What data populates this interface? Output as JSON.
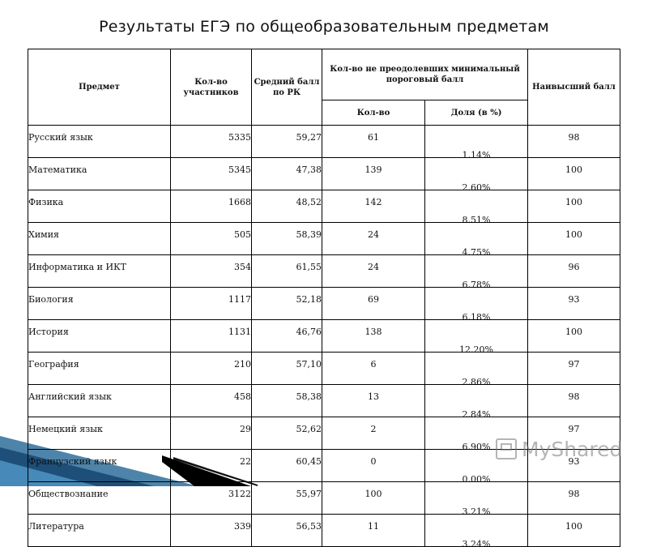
{
  "title": "Результаты ЕГЭ по общеобразовательным предметам",
  "table": {
    "headers": {
      "subject": "Предмет",
      "participants": "Кол-во участников",
      "avg_score": "Средний балл по РК",
      "not_passed": "Кол-во не преодолевших минимальный пороговый балл",
      "not_passed_count": "Кол-во",
      "not_passed_share": "Доля (в %)",
      "max_score": "Наивысший балл"
    },
    "rows": [
      {
        "subject": "Русский язык",
        "participants": "5335",
        "avg": "59,27",
        "count": "61",
        "share": "1,14%",
        "max": "98"
      },
      {
        "subject": "Математика",
        "participants": "5345",
        "avg": "47,38",
        "count": "139",
        "share": "2,60%",
        "max": "100"
      },
      {
        "subject": "Физика",
        "participants": "1668",
        "avg": "48,52",
        "count": "142",
        "share": "8,51%",
        "max": "100"
      },
      {
        "subject": "Химия",
        "participants": "505",
        "avg": "58,39",
        "count": "24",
        "share": "4,75%",
        "max": "100"
      },
      {
        "subject": "Информатика и ИКТ",
        "participants": "354",
        "avg": "61,55",
        "count": "24",
        "share": "6,78%",
        "max": "96"
      },
      {
        "subject": "Биология",
        "participants": "1117",
        "avg": "52,18",
        "count": "69",
        "share": "6,18%",
        "max": "93"
      },
      {
        "subject": "История",
        "participants": "1131",
        "avg": "46,76",
        "count": "138",
        "share": "12,20%",
        "max": "100"
      },
      {
        "subject": "География",
        "participants": "210",
        "avg": "57,10",
        "count": "6",
        "share": "2,86%",
        "max": "97"
      },
      {
        "subject": "Английский язык",
        "participants": "458",
        "avg": "58,38",
        "count": "13",
        "share": "2,84%",
        "max": "98"
      },
      {
        "subject": "Немецкий язык",
        "participants": "29",
        "avg": "52,62",
        "count": "2",
        "share": "6,90%",
        "max": "97"
      },
      {
        "subject": "Французский язык",
        "participants": "22",
        "avg": "60,45",
        "count": "0",
        "share": "0,00%",
        "max": "93"
      },
      {
        "subject": "Обществознание",
        "participants": "3122",
        "avg": "55,97",
        "count": "100",
        "share": "3,21%",
        "max": "98"
      },
      {
        "subject": "Литература",
        "participants": "339",
        "avg": "56,53",
        "count": "11",
        "share": "3,24%",
        "max": "100"
      }
    ]
  },
  "watermark": {
    "text": "MyShared"
  }
}
